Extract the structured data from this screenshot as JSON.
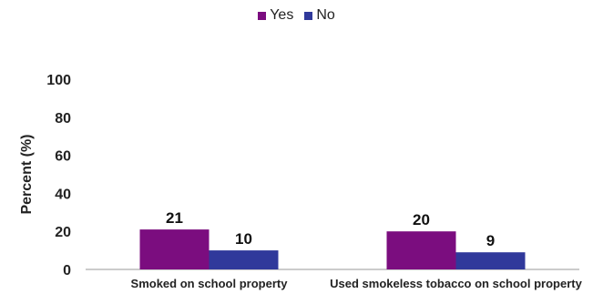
{
  "chart_data": {
    "type": "bar",
    "categories": [
      "Smoked on school property",
      "Used smokeless tobacco on school property"
    ],
    "series": [
      {
        "name": "Yes",
        "values": [
          21,
          20
        ],
        "color": "#7B0D7F"
      },
      {
        "name": "No",
        "values": [
          10,
          9
        ],
        "color": "#30399B"
      }
    ],
    "ylabel": "Percent (%)",
    "ylim": [
      0,
      100
    ],
    "yticks": [
      "0",
      "20",
      "40",
      "60",
      "80",
      "100"
    ],
    "grid": false,
    "legend_position": "top-center"
  }
}
